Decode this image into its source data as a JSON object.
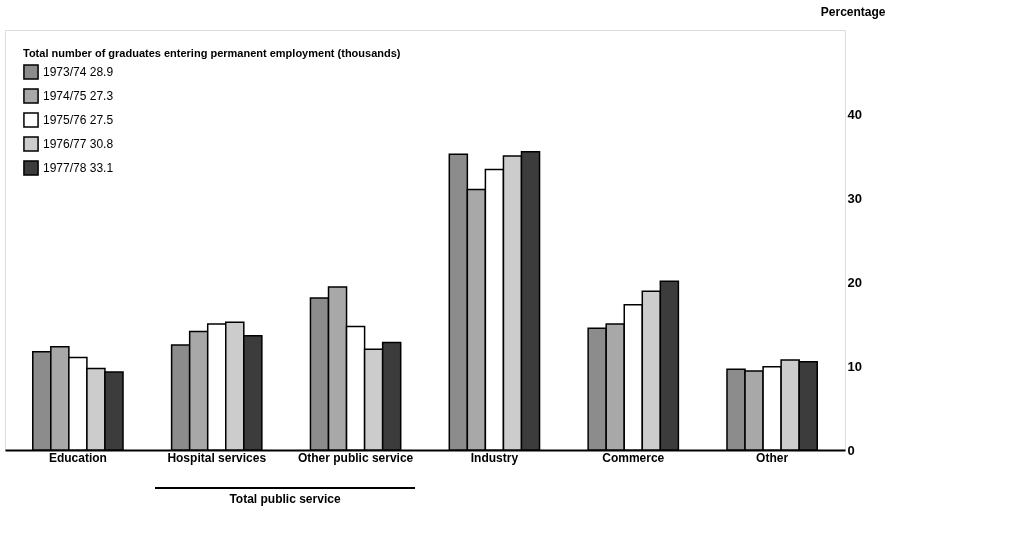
{
  "chart_data": {
    "type": "bar",
    "ylabel": "Percentage",
    "legend_title": "Total number of graduates entering permanent employment (thousands)",
    "categories": [
      "Education",
      "Hospital services",
      "Other public service",
      "Industry",
      "Commerce",
      "Other"
    ],
    "series": [
      {
        "name": "1973/74 28.9",
        "color": "#8c8c8c",
        "values": [
          11.7,
          12.5,
          18.1,
          35.2,
          14.5,
          9.6
        ]
      },
      {
        "name": "1974/75 27.3",
        "color": "#a8a8a8",
        "values": [
          12.3,
          14.1,
          19.4,
          31.0,
          15.0,
          9.4
        ]
      },
      {
        "name": "1975/76 27.5",
        "color": "#ffffff",
        "values": [
          11.0,
          15.0,
          14.7,
          33.4,
          17.3,
          9.9
        ]
      },
      {
        "name": "1976/77 30.8",
        "color": "#cccccc",
        "values": [
          9.7,
          15.2,
          12.0,
          35.0,
          18.9,
          10.7
        ]
      },
      {
        "name": "1977/78 33.1",
        "color": "#3c3c3c",
        "values": [
          9.3,
          13.6,
          12.8,
          35.5,
          20.1,
          10.5
        ]
      }
    ],
    "ylim": [
      0,
      50
    ],
    "yticks": [
      0,
      10,
      20,
      30,
      40
    ],
    "grid": false,
    "legend": "top left",
    "annotations": [
      "Total public service"
    ]
  }
}
